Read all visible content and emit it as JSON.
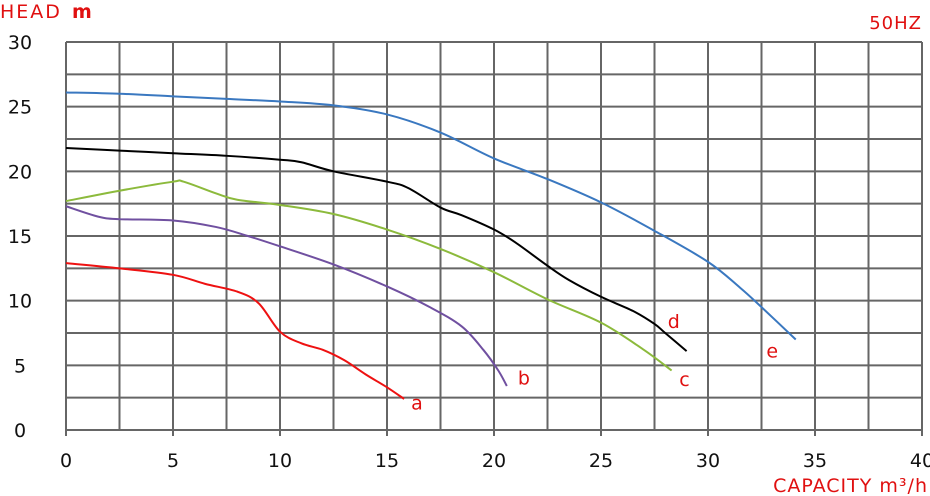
{
  "chart_data": {
    "type": "line",
    "title": "",
    "frequency_label": "50HZ",
    "ylabel": "HEAD",
    "ylabel_unit": "m",
    "xlabel": "CAPACITY m³/h",
    "xlim": [
      0,
      40
    ],
    "ylim": [
      0,
      30
    ],
    "grid": true,
    "x_grid_step": 2.5,
    "y_grid_step": 2.5,
    "x_ticks": [
      "0",
      "5",
      "10",
      "15",
      "20",
      "25",
      "30",
      "35",
      "40"
    ],
    "y_ticks": [
      "0",
      "5",
      "10",
      "15",
      "20",
      "25",
      "30"
    ],
    "series": [
      {
        "name": "a",
        "color": "#ee1111",
        "points": [
          [
            0,
            12.9
          ],
          [
            2.5,
            12.5
          ],
          [
            5,
            12.0
          ],
          [
            6.5,
            11.3
          ],
          [
            8,
            10.7
          ],
          [
            9,
            9.8
          ],
          [
            10,
            7.6
          ],
          [
            11,
            6.7
          ],
          [
            12,
            6.2
          ],
          [
            13,
            5.4
          ],
          [
            14,
            4.3
          ],
          [
            15,
            3.3
          ],
          [
            15.8,
            2.4
          ]
        ]
      },
      {
        "name": "b",
        "color": "#7050a0",
        "points": [
          [
            0,
            17.3
          ],
          [
            1.5,
            16.5
          ],
          [
            2.5,
            16.3
          ],
          [
            5,
            16.2
          ],
          [
            7,
            15.7
          ],
          [
            8.5,
            15.0
          ],
          [
            10,
            14.2
          ],
          [
            12.5,
            12.8
          ],
          [
            15,
            11.1
          ],
          [
            17,
            9.5
          ],
          [
            18.5,
            8.0
          ],
          [
            19.5,
            6.2
          ],
          [
            20.2,
            4.6
          ],
          [
            20.6,
            3.4
          ]
        ]
      },
      {
        "name": "c",
        "color": "#8cba3c",
        "points": [
          [
            0,
            17.7
          ],
          [
            2.5,
            18.5
          ],
          [
            5,
            19.2
          ],
          [
            5.5,
            19.2
          ],
          [
            7,
            18.3
          ],
          [
            8,
            17.8
          ],
          [
            10,
            17.4
          ],
          [
            12.5,
            16.7
          ],
          [
            15,
            15.5
          ],
          [
            17.5,
            14.0
          ],
          [
            20,
            12.2
          ],
          [
            22.5,
            10.1
          ],
          [
            25,
            8.3
          ],
          [
            27,
            6.2
          ],
          [
            28.3,
            4.6
          ]
        ]
      },
      {
        "name": "d",
        "color": "#000000",
        "points": [
          [
            0,
            21.8
          ],
          [
            2.5,
            21.6
          ],
          [
            5,
            21.4
          ],
          [
            7.5,
            21.2
          ],
          [
            10,
            20.9
          ],
          [
            11,
            20.7
          ],
          [
            12.5,
            20.0
          ],
          [
            15,
            19.2
          ],
          [
            16,
            18.7
          ],
          [
            17.5,
            17.2
          ],
          [
            18.5,
            16.6
          ],
          [
            20,
            15.5
          ],
          [
            21,
            14.5
          ],
          [
            22.5,
            12.7
          ],
          [
            23.5,
            11.6
          ],
          [
            25,
            10.3
          ],
          [
            26.5,
            9.2
          ],
          [
            27.5,
            8.2
          ],
          [
            28,
            7.5
          ],
          [
            29,
            6.1
          ]
        ]
      },
      {
        "name": "e",
        "color": "#3a78c0",
        "points": [
          [
            0,
            26.1
          ],
          [
            2.5,
            26.0
          ],
          [
            5,
            25.8
          ],
          [
            7.5,
            25.6
          ],
          [
            10,
            25.4
          ],
          [
            12.5,
            25.1
          ],
          [
            15,
            24.4
          ],
          [
            17.5,
            23.0
          ],
          [
            20,
            21.0
          ],
          [
            22.5,
            19.4
          ],
          [
            25,
            17.6
          ],
          [
            27.5,
            15.4
          ],
          [
            30,
            13.0
          ],
          [
            31.5,
            11.0
          ],
          [
            32.5,
            9.5
          ],
          [
            34.1,
            7.0
          ]
        ]
      }
    ],
    "series_labels": [
      {
        "text": "a",
        "at": [
          16.4,
          1.6
        ]
      },
      {
        "text": "b",
        "at": [
          21.4,
          3.5
        ]
      },
      {
        "text": "c",
        "at": [
          28.9,
          3.4
        ]
      },
      {
        "text": "d",
        "at": [
          28.4,
          7.9
        ]
      },
      {
        "text": "e",
        "at": [
          33.0,
          5.6
        ]
      }
    ]
  }
}
